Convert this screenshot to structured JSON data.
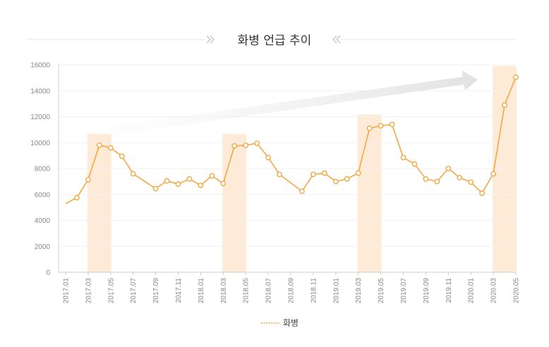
{
  "chart_data": {
    "type": "line",
    "title": "화병 언급 추이",
    "xlabel": "",
    "ylabel": "",
    "ylim": [
      0,
      16000
    ],
    "yticks": [
      0,
      2000,
      4000,
      6000,
      8000,
      10000,
      12000,
      14000,
      16000
    ],
    "x_tick_labels": [
      "2017.01",
      "2017.03",
      "2017.05",
      "2017.07",
      "2017.09",
      "2017.11",
      "2018.01",
      "2018.03",
      "2018.05",
      "2018.07",
      "2018.09",
      "2018.11",
      "2019.01",
      "2019.03",
      "2019.05",
      "2019.07",
      "2019.09",
      "2019.11",
      "2020.01",
      "2020.03",
      "2020.05"
    ],
    "legend": {
      "position": "bottom-center",
      "entries": [
        "화병"
      ]
    },
    "highlight_months": [
      [
        "2017.03",
        "2017.05"
      ],
      [
        "2018.03",
        "2018.05"
      ],
      [
        "2019.03",
        "2019.05"
      ],
      [
        "2020.03",
        "2020.05"
      ]
    ],
    "grid": true,
    "colors": {
      "line": "#f5a742",
      "highlight": "#fdebd7",
      "arrow": "#e2e2e2",
      "axis": "#cccccc",
      "title_chevron": "#bbbbbb"
    },
    "series": [
      {
        "name": "화병",
        "points": [
          {
            "x": "2017.01",
            "y": 5300
          },
          {
            "x": "2017.02",
            "y": 5750
          },
          {
            "x": "2017.03",
            "y": 7150
          },
          {
            "x": "2017.04",
            "y": 9800
          },
          {
            "x": "2017.05",
            "y": 9600
          },
          {
            "x": "2017.06",
            "y": 8950
          },
          {
            "x": "2017.07",
            "y": 7600
          },
          {
            "x": "2017.09",
            "y": 6450
          },
          {
            "x": "2017.10",
            "y": 7050
          },
          {
            "x": "2017.11",
            "y": 6800
          },
          {
            "x": "2017.12",
            "y": 7200
          },
          {
            "x": "2018.01",
            "y": 6700
          },
          {
            "x": "2018.02",
            "y": 7450
          },
          {
            "x": "2018.03",
            "y": 6850
          },
          {
            "x": "2018.04",
            "y": 9750
          },
          {
            "x": "2018.05",
            "y": 9800
          },
          {
            "x": "2018.06",
            "y": 9950
          },
          {
            "x": "2018.07",
            "y": 8850
          },
          {
            "x": "2018.08",
            "y": 7550
          },
          {
            "x": "2018.10",
            "y": 6250
          },
          {
            "x": "2018.11",
            "y": 7550
          },
          {
            "x": "2018.12",
            "y": 7650
          },
          {
            "x": "2019.01",
            "y": 7000
          },
          {
            "x": "2019.02",
            "y": 7200
          },
          {
            "x": "2019.03",
            "y": 7650
          },
          {
            "x": "2019.04",
            "y": 11100
          },
          {
            "x": "2019.05",
            "y": 11300
          },
          {
            "x": "2019.06",
            "y": 11400
          },
          {
            "x": "2019.07",
            "y": 8850
          },
          {
            "x": "2019.08",
            "y": 8350
          },
          {
            "x": "2019.09",
            "y": 7200
          },
          {
            "x": "2019.10",
            "y": 7000
          },
          {
            "x": "2019.11",
            "y": 8000
          },
          {
            "x": "2019.12",
            "y": 7300
          },
          {
            "x": "2020.01",
            "y": 6950
          },
          {
            "x": "2020.02",
            "y": 6100
          },
          {
            "x": "2020.03",
            "y": 7600
          },
          {
            "x": "2020.04",
            "y": 12900
          },
          {
            "x": "2020.05",
            "y": 15050
          }
        ]
      }
    ]
  }
}
